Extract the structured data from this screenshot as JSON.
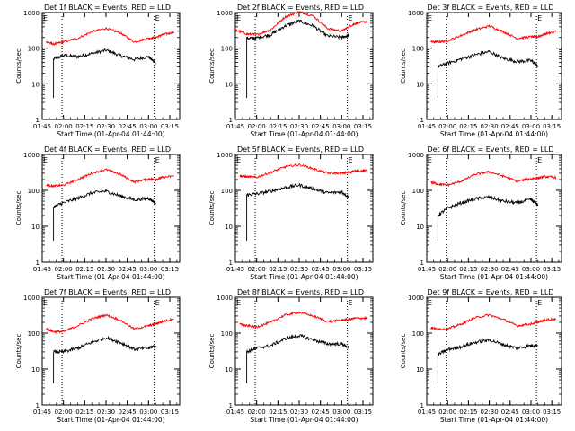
{
  "chart_data": [
    {
      "type": "line",
      "title": "Det 1f BLACK = Events, RED = LLD",
      "xlabel": "Start Time (01-Apr-04 01:44:00)",
      "ylabel": "Counts/sec",
      "yscale": "log",
      "ylim": [
        1,
        1000
      ],
      "x_ticks": [
        "01:45",
        "02:00",
        "02:15",
        "02:30",
        "02:45",
        "03:00",
        "03:15"
      ],
      "y_ticks": [
        "1",
        "10",
        "100",
        "1000"
      ],
      "marker_label": "E",
      "vlines": [
        "01:59",
        "03:04"
      ],
      "x": [
        "01:48",
        "01:53",
        "02:00",
        "02:10",
        "02:20",
        "02:30",
        "02:40",
        "02:50",
        "03:00",
        "03:05",
        "03:10",
        "03:18"
      ],
      "series": [
        {
          "color": "#000000",
          "values": [
            null,
            50,
            62,
            58,
            70,
            88,
            62,
            48,
            58,
            38,
            null,
            null
          ]
        },
        {
          "color": "#ff0000",
          "values": [
            150,
            130,
            150,
            190,
            290,
            360,
            270,
            150,
            190,
            200,
            240,
            280
          ]
        }
      ]
    },
    {
      "type": "line",
      "title": "Det 2f BLACK = Events, RED = LLD",
      "xlabel": "Start Time (01-Apr-04 01:44:00)",
      "ylabel": "Counts/sec",
      "yscale": "log",
      "ylim": [
        1,
        1000
      ],
      "x_ticks": [
        "01:45",
        "02:00",
        "02:15",
        "02:30",
        "02:45",
        "03:00",
        "03:15"
      ],
      "y_ticks": [
        "1",
        "10",
        "100",
        "1000"
      ],
      "marker_label": "E",
      "vlines": [
        "01:59",
        "03:04"
      ],
      "x": [
        "01:45",
        "01:53",
        "02:00",
        "02:10",
        "02:20",
        "02:30",
        "02:40",
        "02:50",
        "03:00",
        "03:05",
        "03:10",
        "03:18"
      ],
      "series": [
        {
          "color": "#000000",
          "values": [
            null,
            190,
            195,
            240,
            420,
            580,
            420,
            220,
            200,
            230,
            null,
            null
          ]
        },
        {
          "color": "#ff0000",
          "values": [
            330,
            250,
            240,
            330,
            750,
            1050,
            800,
            360,
            300,
            400,
            500,
            560
          ]
        }
      ]
    },
    {
      "type": "line",
      "title": "Det 3f BLACK = Events, RED = LLD",
      "xlabel": "Start Time (01-Apr-04 01:44:00)",
      "ylabel": "Counts/sec",
      "yscale": "log",
      "ylim": [
        1,
        1000
      ],
      "x_ticks": [
        "01:45",
        "02:00",
        "02:15",
        "02:30",
        "02:45",
        "03:00",
        "03:15"
      ],
      "y_ticks": [
        "1",
        "10",
        "100",
        "1000"
      ],
      "marker_label": "E",
      "vlines": [
        "01:59",
        "03:04"
      ],
      "x": [
        "01:48",
        "01:53",
        "02:00",
        "02:10",
        "02:20",
        "02:30",
        "02:40",
        "02:50",
        "03:00",
        "03:05",
        "03:10",
        "03:18"
      ],
      "series": [
        {
          "color": "#000000",
          "values": [
            null,
            30,
            38,
            50,
            65,
            80,
            52,
            42,
            45,
            32,
            null,
            null
          ]
        },
        {
          "color": "#ff0000",
          "values": [
            150,
            150,
            160,
            230,
            330,
            420,
            290,
            190,
            210,
            210,
            250,
            300
          ]
        }
      ]
    },
    {
      "type": "line",
      "title": "Det 4f BLACK = Events, RED = LLD",
      "xlabel": "Start Time (01-Apr-04 01:44:00)",
      "ylabel": "Counts/sec",
      "yscale": "log",
      "ylim": [
        1,
        1000
      ],
      "x_ticks": [
        "01:45",
        "02:00",
        "02:15",
        "02:30",
        "02:45",
        "03:00",
        "03:15"
      ],
      "y_ticks": [
        "1",
        "10",
        "100",
        "1000"
      ],
      "marker_label": "E",
      "vlines": [
        "01:59",
        "03:04"
      ],
      "x": [
        "01:48",
        "01:53",
        "02:00",
        "02:10",
        "02:20",
        "02:30",
        "02:40",
        "02:50",
        "03:00",
        "03:05",
        "03:10",
        "03:18"
      ],
      "series": [
        {
          "color": "#000000",
          "values": [
            null,
            35,
            45,
            60,
            85,
            95,
            70,
            55,
            60,
            45,
            null,
            null
          ]
        },
        {
          "color": "#ff0000",
          "values": [
            140,
            130,
            140,
            200,
            300,
            380,
            280,
            170,
            210,
            200,
            230,
            250
          ]
        }
      ]
    },
    {
      "type": "line",
      "title": "Det 5f BLACK = Events, RED = LLD",
      "xlabel": "Start Time (01-Apr-04 01:44:00)",
      "ylabel": "Counts/sec",
      "yscale": "log",
      "ylim": [
        1,
        1000
      ],
      "x_ticks": [
        "01:45",
        "02:00",
        "02:15",
        "02:30",
        "02:45",
        "03:00",
        "03:15"
      ],
      "y_ticks": [
        "1",
        "10",
        "100",
        "1000"
      ],
      "marker_label": "E",
      "vlines": [
        "01:59",
        "03:04"
      ],
      "x": [
        "01:48",
        "01:53",
        "02:00",
        "02:10",
        "02:20",
        "02:30",
        "02:40",
        "02:50",
        "03:00",
        "03:05",
        "03:10",
        "03:18"
      ],
      "series": [
        {
          "color": "#000000",
          "values": [
            null,
            75,
            80,
            95,
            120,
            140,
            110,
            85,
            90,
            65,
            null,
            null
          ]
        },
        {
          "color": "#ff0000",
          "values": [
            250,
            240,
            230,
            320,
            450,
            520,
            400,
            300,
            300,
            320,
            350,
            350
          ]
        }
      ]
    },
    {
      "type": "line",
      "title": "Det 6f BLACK = Events, RED = LLD",
      "xlabel": "Start Time (01-Apr-04 01:44:00)",
      "ylabel": "Counts/sec",
      "yscale": "log",
      "ylim": [
        1,
        1000
      ],
      "x_ticks": [
        "01:45",
        "02:00",
        "02:15",
        "02:30",
        "02:45",
        "03:00",
        "03:15"
      ],
      "y_ticks": [
        "1",
        "10",
        "100",
        "1000"
      ],
      "marker_label": "E",
      "vlines": [
        "01:59",
        "03:04"
      ],
      "x": [
        "01:48",
        "01:53",
        "02:00",
        "02:10",
        "02:20",
        "02:30",
        "02:40",
        "02:50",
        "03:00",
        "03:05",
        "03:10",
        "03:18"
      ],
      "series": [
        {
          "color": "#000000",
          "values": [
            null,
            20,
            32,
            45,
            58,
            65,
            50,
            45,
            55,
            40,
            null,
            null
          ]
        },
        {
          "color": "#ff0000",
          "values": [
            170,
            150,
            140,
            180,
            280,
            330,
            250,
            180,
            210,
            220,
            240,
            230
          ]
        }
      ]
    },
    {
      "type": "line",
      "title": "Det 7f BLACK = Events, RED = LLD",
      "xlabel": "Start Time (01-Apr-04 01:44:00)",
      "ylabel": "Counts/sec",
      "yscale": "log",
      "ylim": [
        1,
        1000
      ],
      "x_ticks": [
        "01:45",
        "02:00",
        "02:15",
        "02:30",
        "02:45",
        "03:00",
        "03:15"
      ],
      "y_ticks": [
        "1",
        "10",
        "100",
        "1000"
      ],
      "marker_label": "E",
      "vlines": [
        "01:59",
        "03:04"
      ],
      "x": [
        "01:48",
        "01:53",
        "02:00",
        "02:10",
        "02:20",
        "02:30",
        "02:40",
        "02:50",
        "03:00",
        "03:05",
        "03:10",
        "03:18"
      ],
      "series": [
        {
          "color": "#000000",
          "values": [
            null,
            30,
            30,
            38,
            55,
            75,
            55,
            36,
            38,
            45,
            null,
            null
          ]
        },
        {
          "color": "#ff0000",
          "values": [
            130,
            110,
            110,
            160,
            250,
            320,
            230,
            130,
            160,
            180,
            210,
            250
          ]
        }
      ]
    },
    {
      "type": "line",
      "title": "Det 8f BLACK = Events, RED = LLD",
      "xlabel": "Start Time (01-Apr-04 01:44:00)",
      "ylabel": "Counts/sec",
      "yscale": "log",
      "ylim": [
        1,
        1000
      ],
      "x_ticks": [
        "01:45",
        "02:00",
        "02:15",
        "02:30",
        "02:45",
        "03:00",
        "03:15"
      ],
      "y_ticks": [
        "1",
        "10",
        "100",
        "1000"
      ],
      "marker_label": "E",
      "vlines": [
        "01:59",
        "03:04"
      ],
      "x": [
        "01:48",
        "01:53",
        "02:00",
        "02:10",
        "02:20",
        "02:30",
        "02:40",
        "02:50",
        "03:00",
        "03:05",
        "03:10",
        "03:18"
      ],
      "series": [
        {
          "color": "#000000",
          "values": [
            null,
            30,
            38,
            45,
            70,
            85,
            65,
            50,
            50,
            40,
            null,
            null
          ]
        },
        {
          "color": "#ff0000",
          "values": [
            180,
            160,
            150,
            200,
            320,
            380,
            300,
            210,
            230,
            240,
            260,
            260
          ]
        }
      ]
    },
    {
      "type": "line",
      "title": "Det 9f BLACK = Events, RED = LLD",
      "xlabel": "Start Time (01-Apr-04 01:44:00)",
      "ylabel": "Counts/sec",
      "yscale": "log",
      "ylim": [
        1,
        1000
      ],
      "x_ticks": [
        "01:45",
        "02:00",
        "02:15",
        "02:30",
        "02:45",
        "03:00",
        "03:15"
      ],
      "y_ticks": [
        "1",
        "10",
        "100",
        "1000"
      ],
      "marker_label": "E",
      "vlines": [
        "01:59",
        "03:04"
      ],
      "x": [
        "01:48",
        "01:53",
        "02:00",
        "02:10",
        "02:20",
        "02:30",
        "02:40",
        "02:50",
        "03:00",
        "03:05",
        "03:10",
        "03:18"
      ],
      "series": [
        {
          "color": "#000000",
          "values": [
            null,
            25,
            35,
            42,
            55,
            65,
            48,
            38,
            45,
            45,
            null,
            null
          ]
        },
        {
          "color": "#ff0000",
          "values": [
            140,
            130,
            130,
            180,
            270,
            320,
            240,
            160,
            180,
            200,
            230,
            250
          ]
        }
      ]
    }
  ]
}
